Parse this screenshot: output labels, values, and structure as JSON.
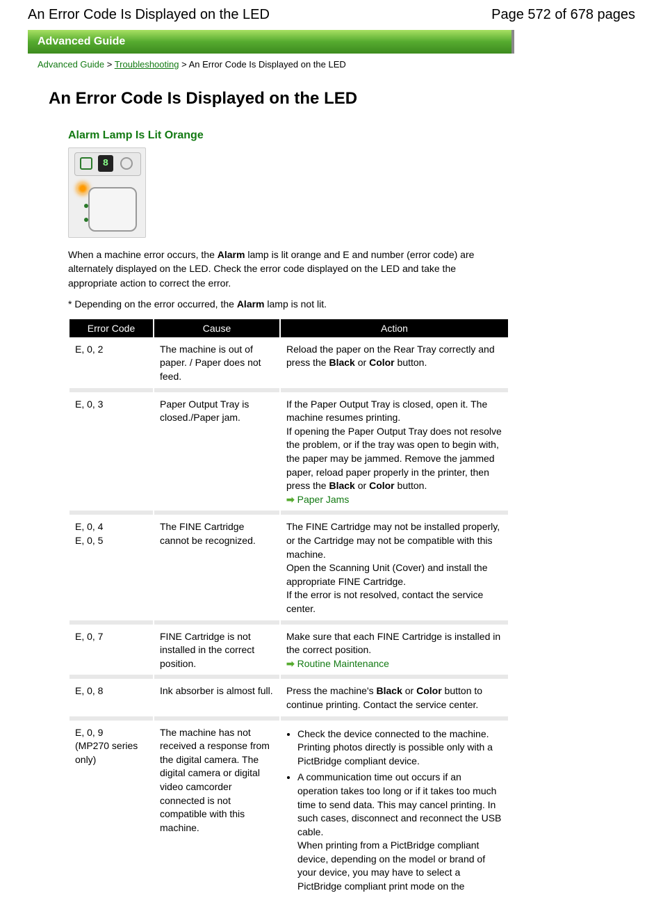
{
  "top": {
    "title": "An Error Code Is Displayed on the LED",
    "page": "Page 572 of 678 pages"
  },
  "banner": "Advanced Guide",
  "breadcrumb": {
    "root": "Advanced Guide",
    "link": "Troubleshooting",
    "current": "An Error Code Is Displayed on the LED"
  },
  "headings": {
    "main": "An Error Code Is Displayed on the LED",
    "sub": "Alarm Lamp Is Lit Orange"
  },
  "illus": {
    "led_text": "8"
  },
  "intro": {
    "p1a": "When a machine error occurs, the ",
    "p1b": "Alarm",
    "p1c": " lamp is lit orange and E and number (error code) are alternately displayed on the LED. Check the error code displayed on the LED and take the appropriate action to correct the error.",
    "note_a": "* Depending on the error occurred, the ",
    "note_b": "Alarm",
    "note_c": " lamp is not lit."
  },
  "table": {
    "headers": {
      "code": "Error Code",
      "cause": "Cause",
      "action": "Action"
    },
    "rows": {
      "r1": {
        "code": "E, 0, 2",
        "cause": "The machine is out of paper. / Paper does not feed.",
        "action_a": "Reload the paper on the Rear Tray correctly and press the ",
        "action_b": "Black",
        "action_c": " or ",
        "action_d": "Color",
        "action_e": " button."
      },
      "r2": {
        "code": "E, 0, 3",
        "cause": "Paper Output Tray is closed./Paper jam.",
        "action_a": "If the Paper Output Tray is closed, open it. The machine resumes printing.",
        "action_b": "If opening the Paper Output Tray does not resolve the problem, or if the tray was open to begin with, the paper may be jammed. Remove the jammed paper, reload paper properly in the printer, then press the ",
        "action_c": "Black",
        "action_d": " or ",
        "action_e": "Color",
        "action_f": " button.",
        "link": "Paper Jams"
      },
      "r3": {
        "code_a": "E, 0, 4",
        "code_b": "E, 0, 5",
        "cause": "The FINE Cartridge cannot be recognized.",
        "action_a": "The FINE Cartridge may not be installed properly, or the Cartridge may not be compatible with this machine.",
        "action_b": "Open the Scanning Unit (Cover) and install the appropriate FINE Cartridge.",
        "action_c": "If the error is not resolved, contact the service center."
      },
      "r4": {
        "code": "E, 0, 7",
        "cause": "FINE Cartridge is not installed in the correct position.",
        "action_a": "Make sure that each FINE Cartridge is installed in the correct position.",
        "link": "Routine Maintenance"
      },
      "r5": {
        "code": "E, 0, 8",
        "cause": "Ink absorber is almost full.",
        "action_a": "Press the machine's ",
        "action_b": "Black",
        "action_c": " or ",
        "action_d": "Color",
        "action_e": " button to continue printing. Contact the service center."
      },
      "r6": {
        "code_a": "E, 0, 9",
        "code_b": "(MP270 series only)",
        "cause": "The machine has not received a response from the digital camera. The digital camera or digital video camcorder connected is not compatible with this machine.",
        "li1": "Check the device connected to the machine. Printing photos directly is possible only with a PictBridge compliant device.",
        "li2a": "A communication time out occurs if an operation takes too long or if it takes too much time to send data. This may cancel printing. In such cases, disconnect and reconnect the USB cable.",
        "li2b": "When printing from a PictBridge compliant device, depending on the model or brand of your device, you may have to select a PictBridge compliant print mode on the"
      }
    }
  },
  "colors": {
    "green": "#137a13",
    "banner_light": "#a8e063",
    "banner_dark": "#3d8b1f"
  }
}
